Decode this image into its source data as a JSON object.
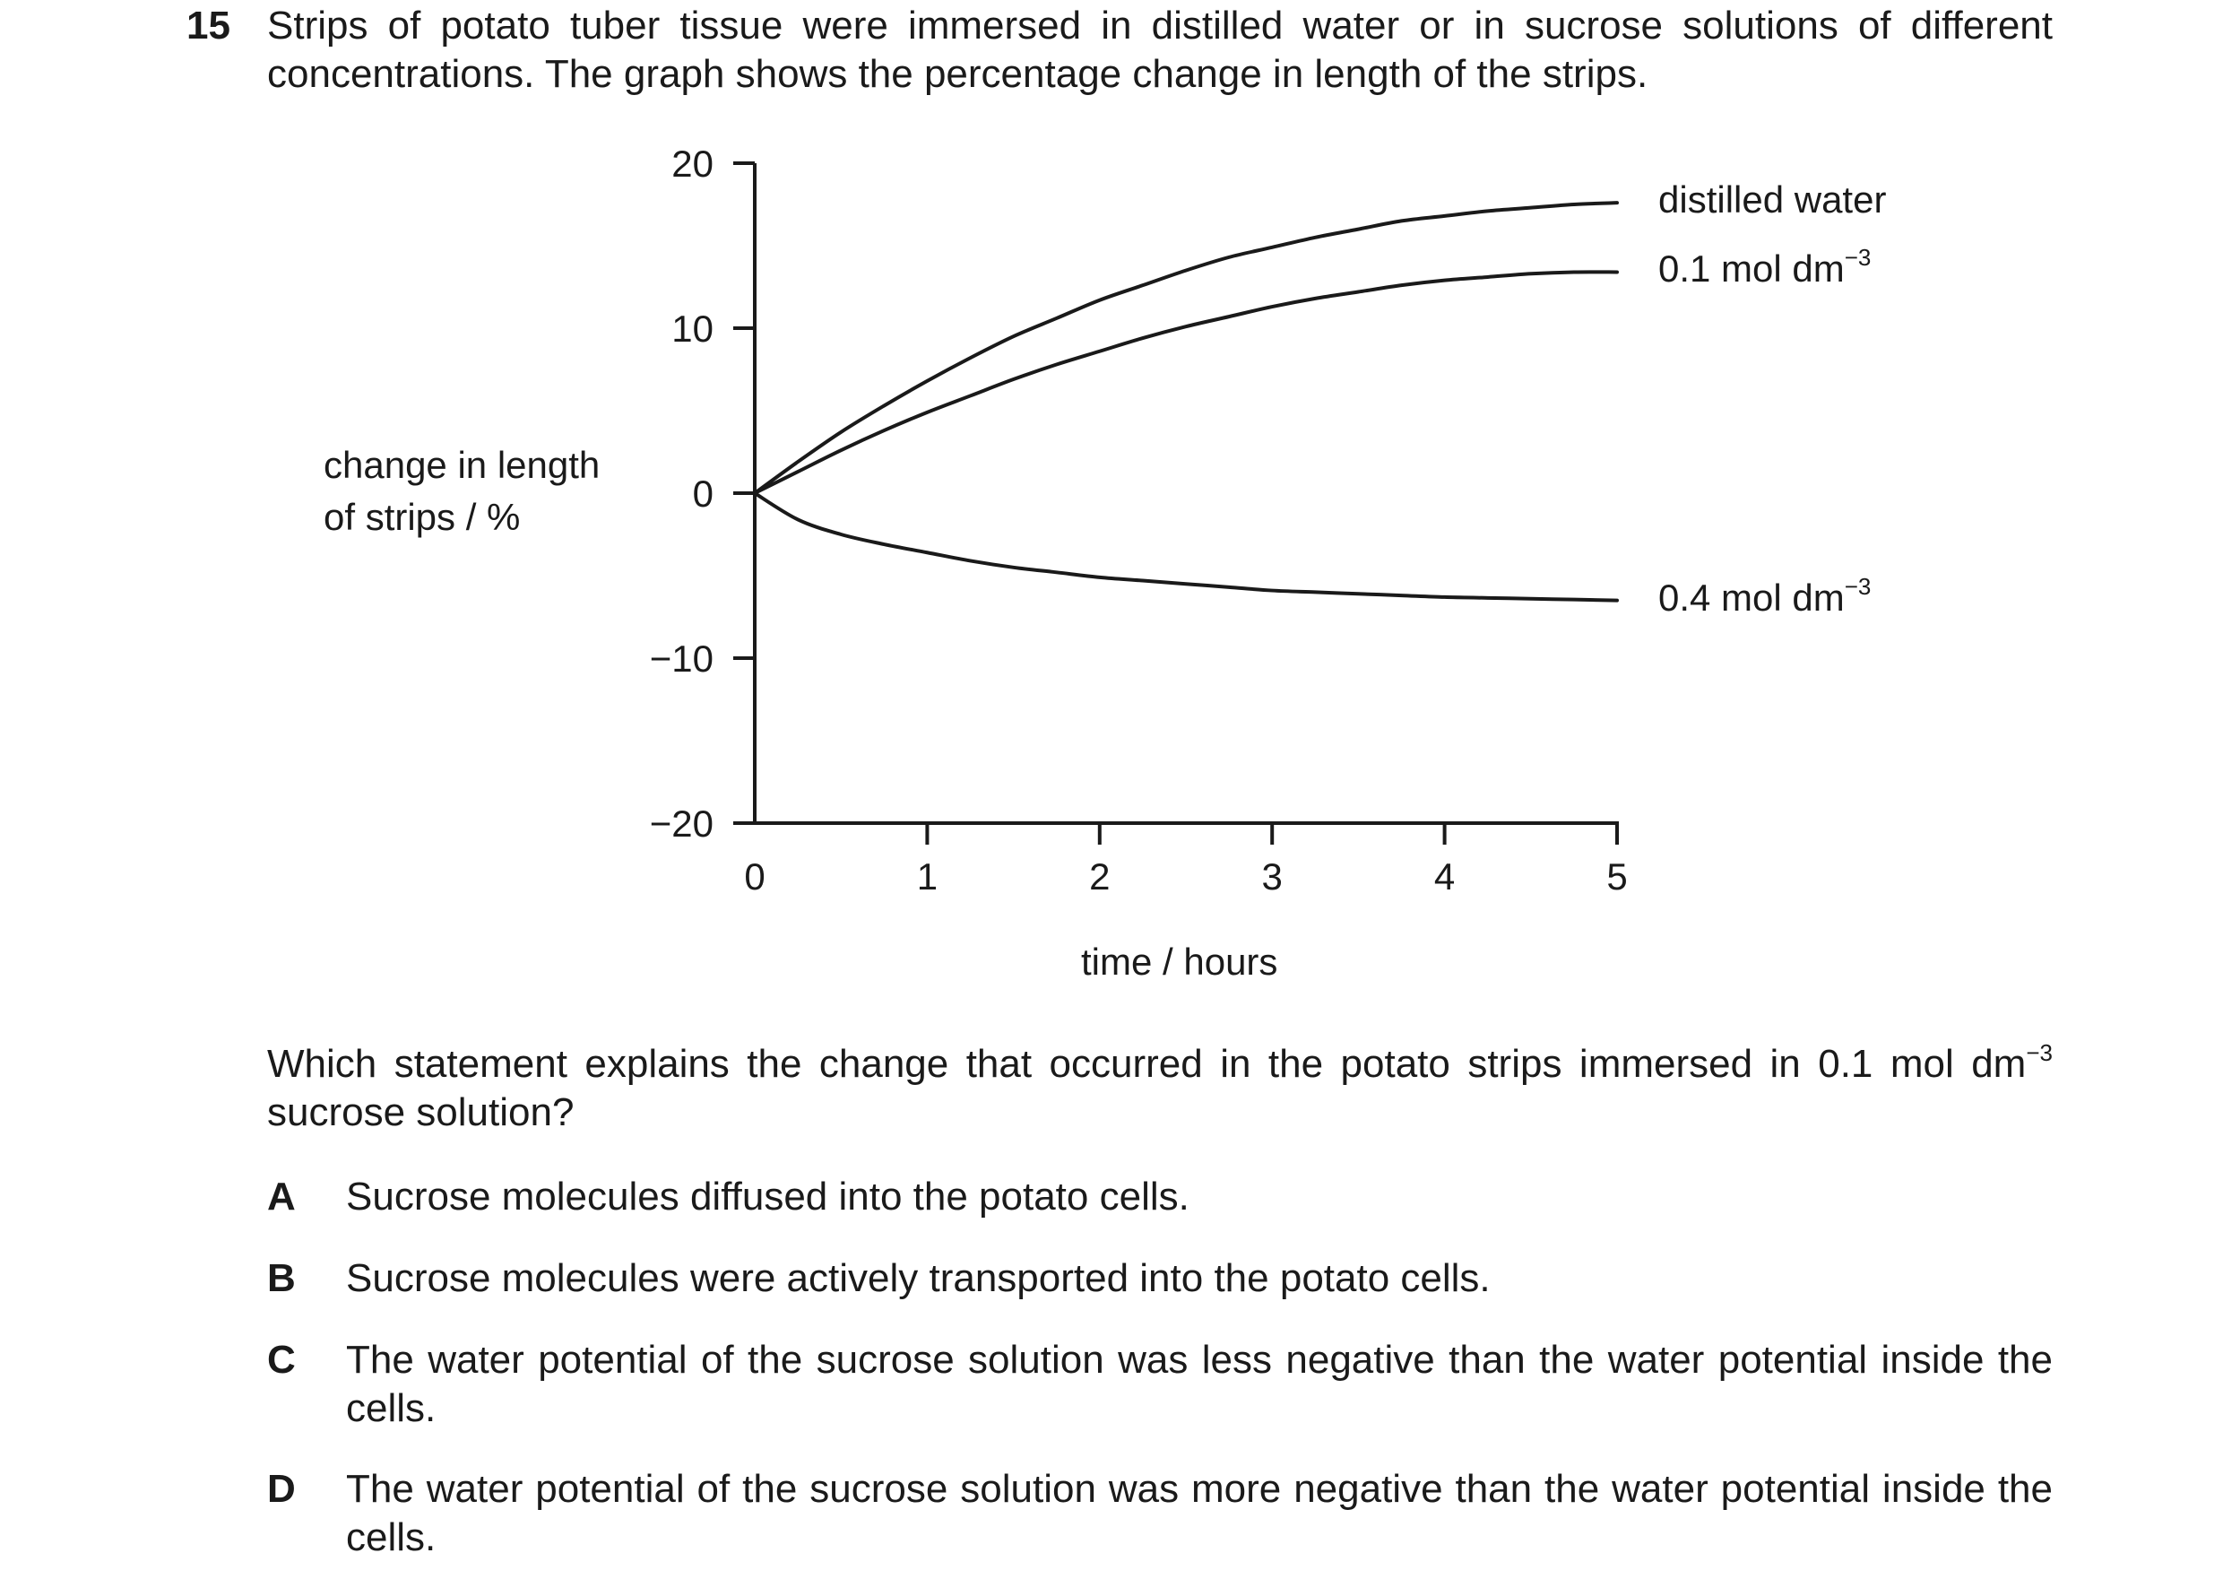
{
  "question": {
    "number": "15",
    "stem": "Strips of potato tuber tissue were immersed in distilled water or in sucrose solutions of different concentrations. The graph shows the percentage change in length of the strips.",
    "prompt_main": "Which statement explains the change that occurred in the potato strips immersed in 0.1 mol dm",
    "prompt_sup": "−3",
    "prompt_end": " sucrose solution?",
    "options": [
      {
        "letter": "A",
        "text": "Sucrose molecules diffused into the potato cells."
      },
      {
        "letter": "B",
        "text": "Sucrose molecules were actively transported into the potato cells."
      },
      {
        "letter": "C",
        "text": "The water potential of the sucrose solution was less negative than the water potential inside the cells."
      },
      {
        "letter": "D",
        "text": "The water potential of the sucrose solution was more negative than the water potential inside the cells."
      }
    ]
  },
  "chart_data": {
    "type": "line",
    "title": "",
    "ylabel_line1": "change in length",
    "ylabel_line2": "of strips / %",
    "xlabel": "time / hours",
    "xlim": [
      0,
      5
    ],
    "ylim": [
      -20,
      20
    ],
    "x_ticks": [
      0,
      1,
      2,
      3,
      4,
      5
    ],
    "x_tick_labels": [
      "0",
      "1",
      "2",
      "3",
      "4",
      "5"
    ],
    "y_ticks": [
      20,
      10,
      0,
      -10,
      -20
    ],
    "y_tick_labels": [
      "20",
      "10",
      "0",
      "−10",
      "−20"
    ],
    "grid": false,
    "line_color": "#1a1a1a",
    "series": [
      {
        "label_main": "distilled water",
        "label_sup": "",
        "x": [
          0,
          0.25,
          0.5,
          0.75,
          1,
          1.25,
          1.5,
          1.75,
          2,
          2.25,
          2.5,
          2.75,
          3,
          3.25,
          3.5,
          3.75,
          4,
          4.25,
          4.5,
          4.75,
          5
        ],
        "y": [
          0,
          1.9,
          3.7,
          5.3,
          6.8,
          8.2,
          9.5,
          10.6,
          11.7,
          12.6,
          13.5,
          14.3,
          14.9,
          15.5,
          16.0,
          16.5,
          16.8,
          17.1,
          17.3,
          17.5,
          17.6
        ]
      },
      {
        "label_main": "0.1 mol dm",
        "label_sup": "−3",
        "x": [
          0,
          0.25,
          0.5,
          0.75,
          1,
          1.25,
          1.5,
          1.75,
          2,
          2.25,
          2.5,
          2.75,
          3,
          3.25,
          3.5,
          3.75,
          4,
          4.25,
          4.5,
          4.75,
          5
        ],
        "y": [
          0,
          1.3,
          2.6,
          3.8,
          4.9,
          5.9,
          6.9,
          7.8,
          8.6,
          9.4,
          10.1,
          10.7,
          11.3,
          11.8,
          12.2,
          12.6,
          12.9,
          13.1,
          13.3,
          13.4,
          13.4
        ]
      },
      {
        "label_main": "0.4 mol dm",
        "label_sup": "−3",
        "x": [
          0,
          0.25,
          0.5,
          0.75,
          1,
          1.25,
          1.5,
          1.75,
          2,
          2.25,
          2.5,
          2.75,
          3,
          3.25,
          3.5,
          3.75,
          4,
          4.25,
          4.5,
          4.75,
          5
        ],
        "y": [
          0,
          -1.6,
          -2.5,
          -3.1,
          -3.6,
          -4.1,
          -4.5,
          -4.8,
          -5.1,
          -5.3,
          -5.5,
          -5.7,
          -5.9,
          -6.0,
          -6.1,
          -6.2,
          -6.3,
          -6.35,
          -6.4,
          -6.45,
          -6.5
        ]
      }
    ]
  }
}
